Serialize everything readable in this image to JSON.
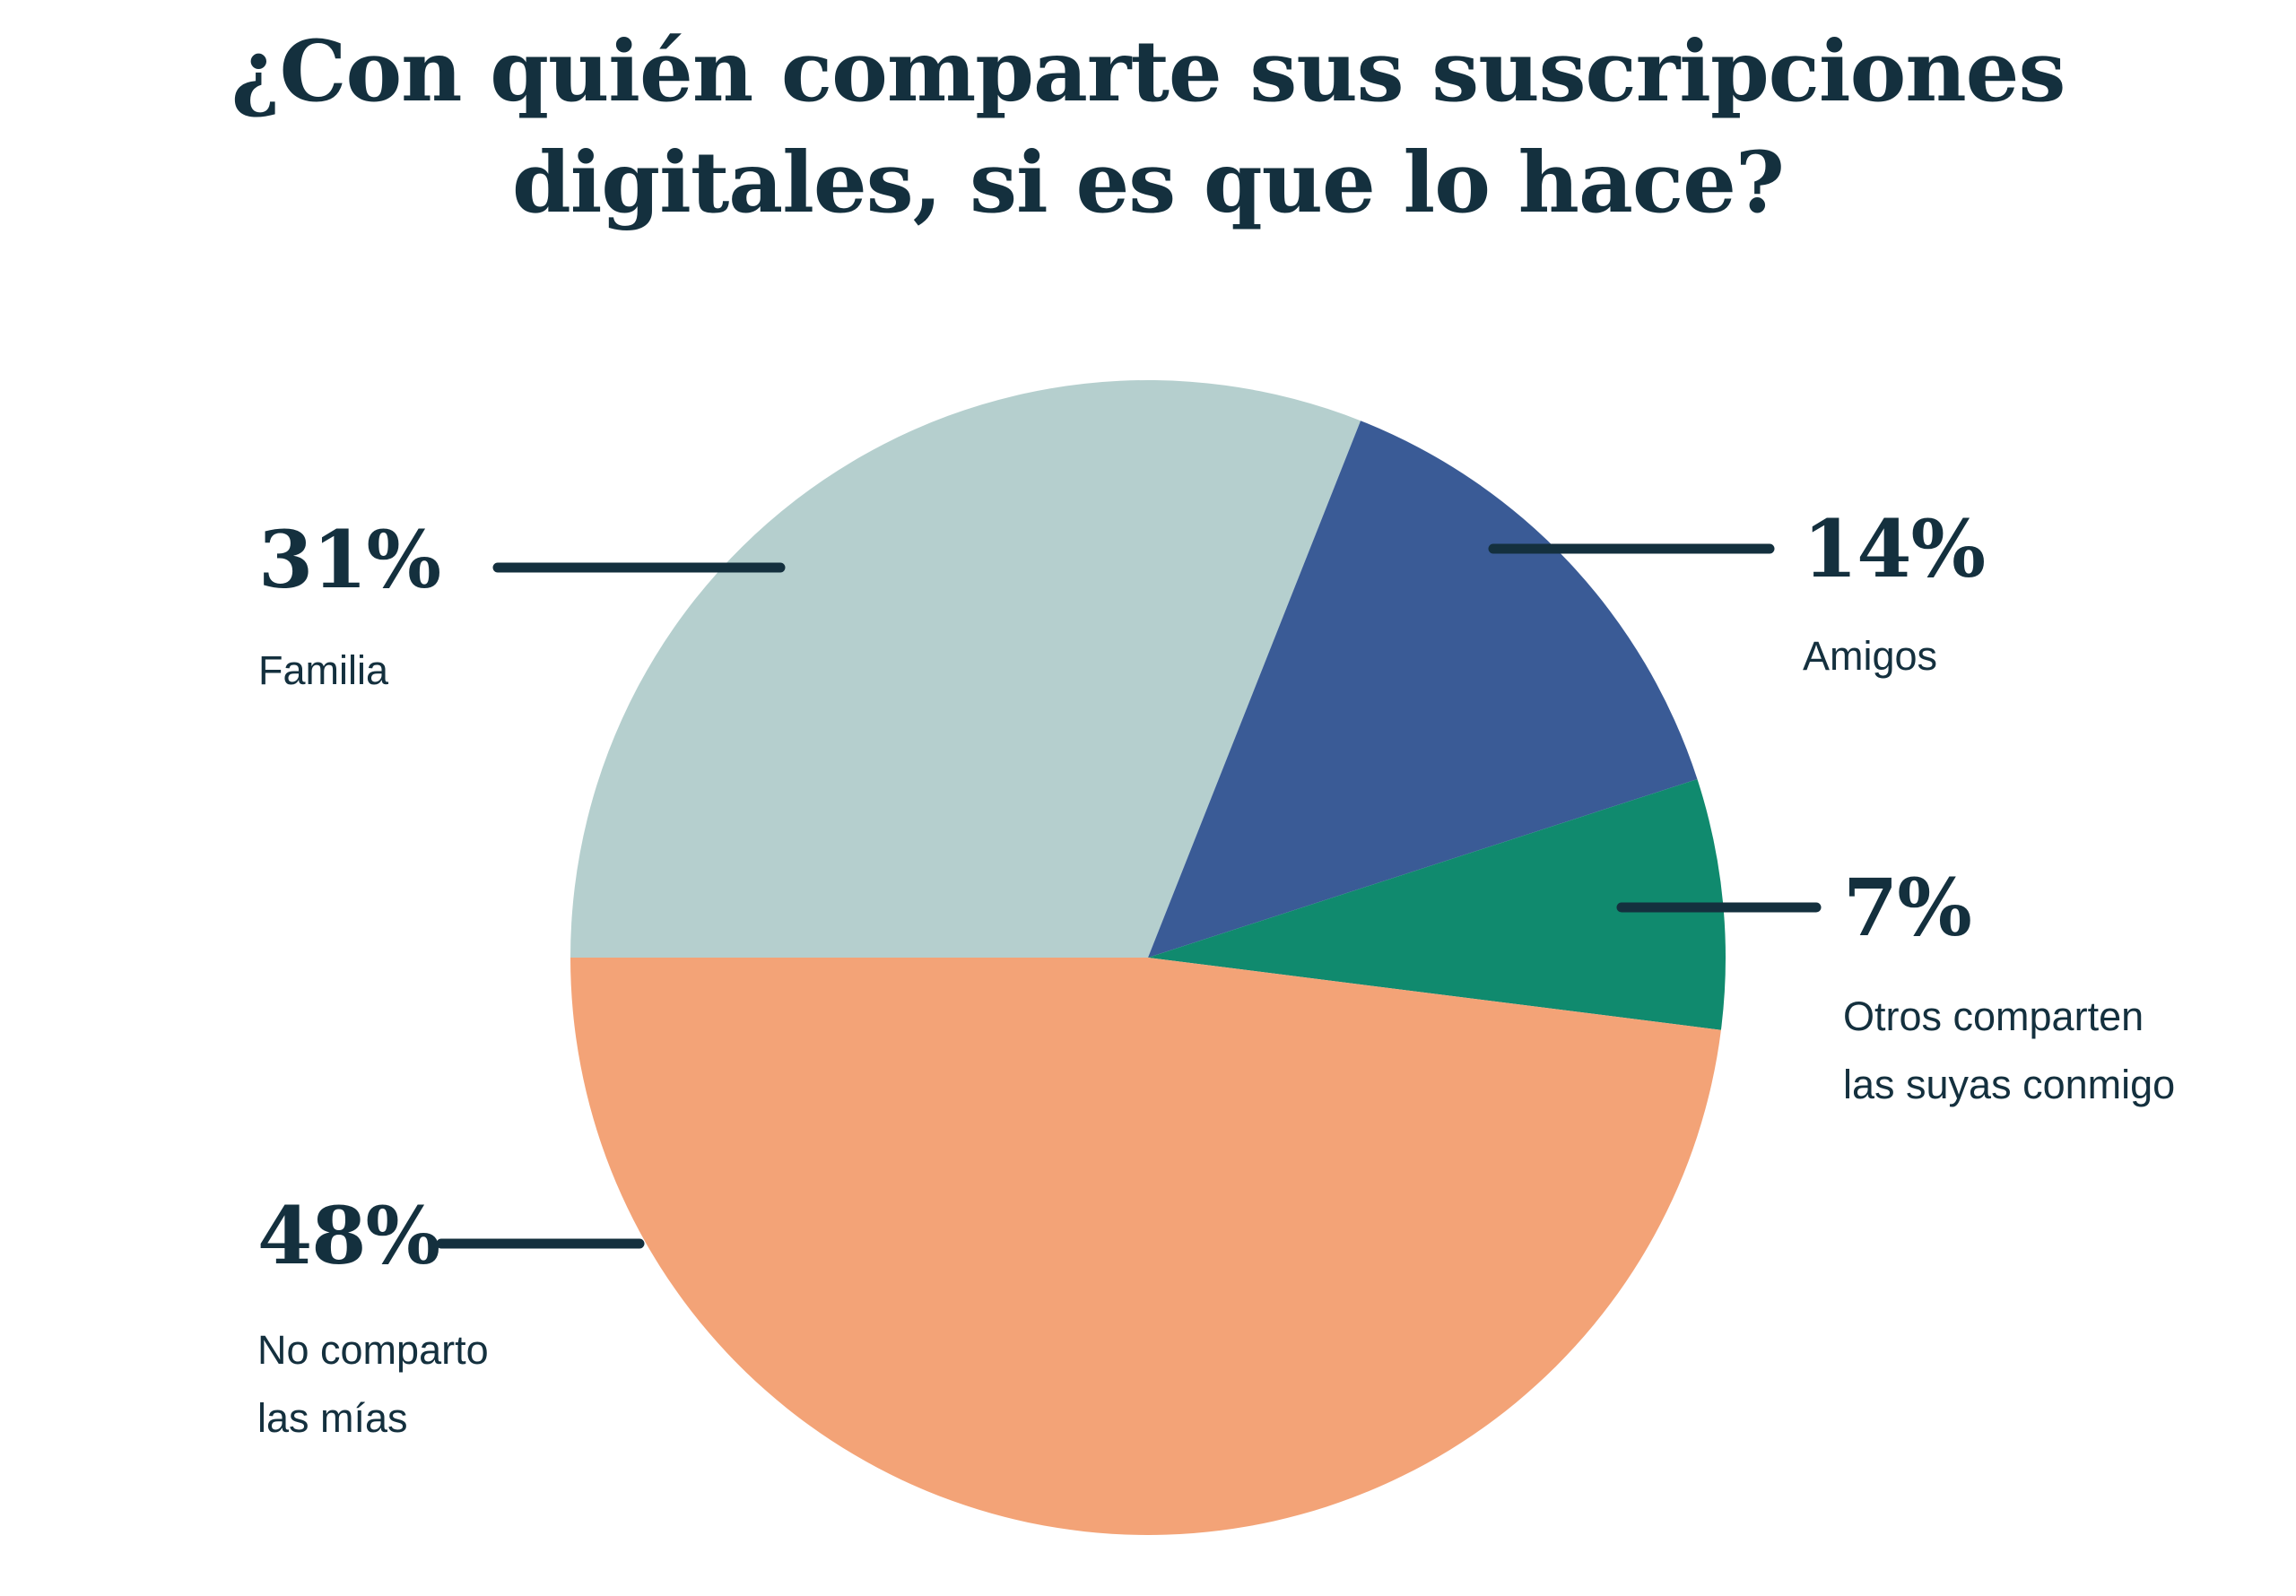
{
  "title": "¿Con quién comparte sus suscripciones\ndigitales, si es que lo hace?",
  "colors": {
    "background": "#ffffff",
    "text_navy": "#14303e",
    "leader_line": "#14303e"
  },
  "chart_data": {
    "type": "pie",
    "title": "¿Con quién comparte sus suscripciones digitales, si es que lo hace?",
    "legend_position": "callouts",
    "start_angle_clockwise_from_top_deg": 270,
    "direction": "clockwise",
    "slices": [
      {
        "id": "familia",
        "label": "Familia",
        "pct": 31,
        "pct_label": "31%",
        "color": "#b5cfce"
      },
      {
        "id": "amigos",
        "label": "Amigos",
        "pct": 14,
        "pct_label": "14%",
        "color": "#3a5b96"
      },
      {
        "id": "otros",
        "label": "Otros comparten\nlas suyas conmigo",
        "pct": 7,
        "pct_label": "7%",
        "color": "#108a6e"
      },
      {
        "id": "no-comparto",
        "label": "No comparto\nlas mías",
        "pct": 48,
        "pct_label": "48%",
        "color": "#f3a377"
      }
    ]
  }
}
